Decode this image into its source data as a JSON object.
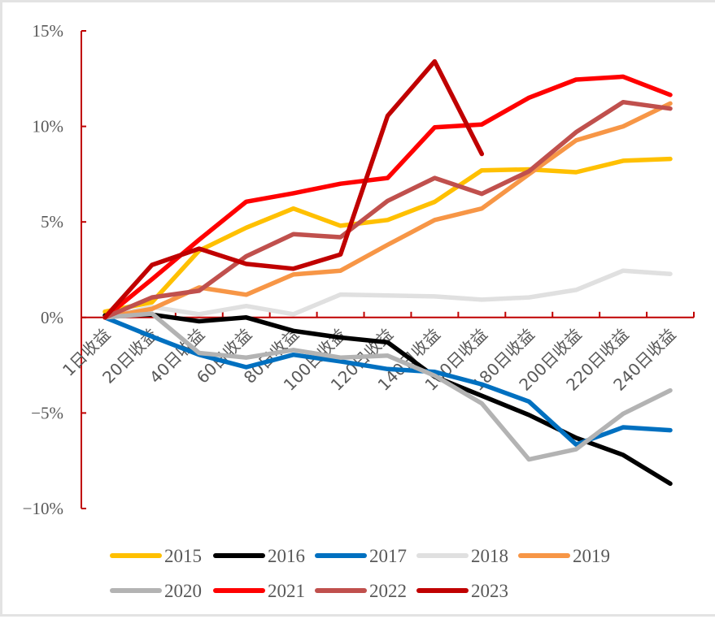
{
  "chart_data": {
    "type": "line",
    "title": "",
    "xlabel": "",
    "ylabel": "",
    "ylim": [
      -0.1,
      0.15
    ],
    "yticks": [
      0.15,
      0.1,
      0.05,
      0.0,
      -0.05,
      -0.1
    ],
    "ytick_labels": [
      "15%",
      "10%",
      "5%",
      "0%",
      "−5%",
      "−10%"
    ],
    "grid": false,
    "legend_position": "bottom",
    "axis_color": "#C00000",
    "categories": [
      "1日收益",
      "20日收益",
      "40日收益",
      "60日收益",
      "80日收益",
      "100日收益",
      "120日收益",
      "140日收益",
      "160日收益",
      "180日收益",
      "200日收益",
      "220日收益",
      "240日收益"
    ],
    "series": [
      {
        "name": "2015",
        "color": "#FFC000",
        "values": [
          0.003,
          0.008,
          0.035,
          0.047,
          0.057,
          0.048,
          0.051,
          0.0605,
          0.077,
          0.0775,
          0.076,
          0.082,
          0.083
        ]
      },
      {
        "name": "2016",
        "color": "#000000",
        "values": [
          0.001,
          0.0015,
          -0.002,
          0.0,
          -0.007,
          -0.0105,
          -0.013,
          -0.031,
          -0.041,
          -0.051,
          -0.063,
          -0.072,
          -0.087
        ]
      },
      {
        "name": "2017",
        "color": "#0070C0",
        "values": [
          0.0,
          -0.01,
          -0.0195,
          -0.026,
          -0.0195,
          -0.023,
          -0.027,
          -0.0285,
          -0.035,
          -0.044,
          -0.0665,
          -0.0575,
          -0.059
        ]
      },
      {
        "name": "2018",
        "color": "#E0E0E0",
        "values": [
          0.0,
          0.0055,
          0.0017,
          0.006,
          0.0017,
          0.012,
          0.0115,
          0.011,
          0.0093,
          0.0105,
          0.0144,
          0.0245,
          0.0228
        ]
      },
      {
        "name": "2019",
        "color": "#F79646",
        "values": [
          0.0,
          0.0045,
          0.0157,
          0.0119,
          0.0225,
          0.0245,
          0.038,
          0.051,
          0.057,
          0.075,
          0.0927,
          0.1,
          0.112
        ]
      },
      {
        "name": "2020",
        "color": "#B3B3B3",
        "values": [
          0.0,
          0.002,
          -0.0186,
          -0.021,
          -0.017,
          -0.021,
          -0.02,
          -0.0305,
          -0.045,
          -0.0743,
          -0.069,
          -0.0504,
          -0.0382
        ]
      },
      {
        "name": "2021",
        "color": "#FF0000",
        "values": [
          0.0,
          0.02,
          0.0407,
          0.0606,
          0.065,
          0.07,
          0.073,
          0.0995,
          0.101,
          0.115,
          0.1245,
          0.126,
          0.1165
        ]
      },
      {
        "name": "2022",
        "color": "#C0504D",
        "values": [
          0.0,
          0.0105,
          0.014,
          0.032,
          0.0436,
          0.042,
          0.061,
          0.073,
          0.0647,
          0.0765,
          0.097,
          0.1127,
          0.1093
        ]
      },
      {
        "name": "2023",
        "color": "#C00000",
        "values": [
          0.0,
          0.0275,
          0.036,
          0.028,
          0.0255,
          0.033,
          0.1055,
          0.134,
          0.0856,
          null,
          null,
          null,
          null
        ]
      }
    ]
  }
}
